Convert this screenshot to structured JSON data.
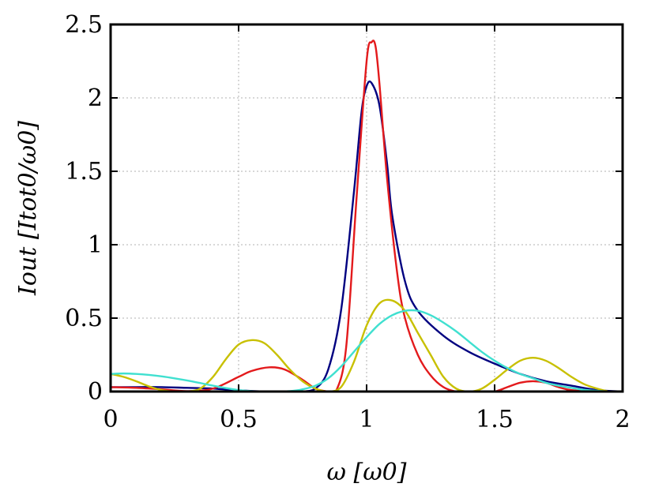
{
  "chart_data": {
    "type": "line",
    "xlabel": "ω [ω0]",
    "ylabel": "Iout [Itot0/ω0]",
    "xlim": [
      0,
      2
    ],
    "ylim": [
      0,
      2.5
    ],
    "x_ticks": [
      "0",
      "0.5",
      "1",
      "1.5",
      "2"
    ],
    "y_ticks": [
      "0",
      "0.5",
      "1",
      "1.5",
      "2",
      "2.5"
    ],
    "grid": true,
    "series": [
      {
        "color": "#000080",
        "x": [
          0,
          0.1,
          0.2,
          0.3,
          0.4,
          0.5,
          0.6,
          0.7,
          0.75,
          0.8,
          0.85,
          0.9,
          0.95,
          0.98,
          1.0,
          1.02,
          1.05,
          1.08,
          1.1,
          1.15,
          1.2,
          1.3,
          1.4,
          1.5,
          1.6,
          1.7,
          1.8,
          1.9,
          2.0
        ],
        "y": [
          0.03,
          0.03,
          0.03,
          0.025,
          0.02,
          0.008,
          0.0,
          0.0,
          0.0,
          0.02,
          0.15,
          0.55,
          1.35,
          1.9,
          2.08,
          2.1,
          1.95,
          1.55,
          1.2,
          0.75,
          0.55,
          0.38,
          0.27,
          0.19,
          0.12,
          0.07,
          0.04,
          0.01,
          0.0
        ]
      },
      {
        "color": "#e31a1c",
        "x": [
          0,
          0.1,
          0.2,
          0.3,
          0.4,
          0.5,
          0.55,
          0.62,
          0.68,
          0.75,
          0.8,
          0.85,
          0.88,
          0.92,
          0.96,
          1.0,
          1.02,
          1.035,
          1.05,
          1.08,
          1.12,
          1.15,
          1.2,
          1.25,
          1.3,
          1.35,
          1.4,
          1.45,
          1.5,
          1.55,
          1.6,
          1.65,
          1.7,
          1.75,
          1.8,
          1.9,
          2.0
        ],
        "y": [
          0.03,
          0.025,
          0.015,
          0.003,
          0.02,
          0.1,
          0.14,
          0.165,
          0.15,
          0.08,
          0.02,
          0.0,
          0.0,
          0.3,
          1.3,
          2.25,
          2.38,
          2.35,
          2.1,
          1.45,
          0.8,
          0.5,
          0.25,
          0.11,
          0.03,
          0.0,
          0.0,
          0.0,
          0.0,
          0.03,
          0.06,
          0.07,
          0.06,
          0.03,
          0.01,
          0.0,
          0.0
        ]
      },
      {
        "color": "#c8c000",
        "x": [
          0,
          0.05,
          0.1,
          0.15,
          0.2,
          0.25,
          0.3,
          0.35,
          0.4,
          0.45,
          0.5,
          0.55,
          0.6,
          0.65,
          0.7,
          0.75,
          0.8,
          0.85,
          0.9,
          0.95,
          1.0,
          1.05,
          1.1,
          1.15,
          1.2,
          1.25,
          1.3,
          1.35,
          1.4,
          1.45,
          1.5,
          1.55,
          1.6,
          1.65,
          1.7,
          1.75,
          1.8,
          1.85,
          1.9,
          1.95,
          2.0
        ],
        "y": [
          0.12,
          0.1,
          0.07,
          0.035,
          0.01,
          0.0,
          0.0,
          0.02,
          0.1,
          0.22,
          0.32,
          0.35,
          0.33,
          0.25,
          0.15,
          0.07,
          0.02,
          0.0,
          0.03,
          0.2,
          0.45,
          0.6,
          0.62,
          0.55,
          0.4,
          0.25,
          0.1,
          0.02,
          0.0,
          0.02,
          0.08,
          0.15,
          0.21,
          0.23,
          0.21,
          0.16,
          0.1,
          0.05,
          0.02,
          0.0,
          0.0
        ]
      },
      {
        "color": "#40e0d0",
        "x": [
          0,
          0.05,
          0.1,
          0.15,
          0.2,
          0.25,
          0.3,
          0.35,
          0.4,
          0.45,
          0.5,
          0.55,
          0.6,
          0.65,
          0.7,
          0.75,
          0.8,
          0.85,
          0.9,
          0.95,
          1.0,
          1.05,
          1.1,
          1.15,
          1.2,
          1.25,
          1.3,
          1.35,
          1.4,
          1.45,
          1.5,
          1.55,
          1.6,
          1.65,
          1.7,
          1.75,
          1.8,
          1.85,
          1.9,
          1.95,
          2.0
        ],
        "y": [
          0.12,
          0.123,
          0.12,
          0.113,
          0.103,
          0.09,
          0.075,
          0.058,
          0.04,
          0.024,
          0.01,
          0.003,
          0.0,
          0.0,
          0.003,
          0.015,
          0.04,
          0.09,
          0.17,
          0.27,
          0.37,
          0.46,
          0.52,
          0.55,
          0.55,
          0.52,
          0.47,
          0.41,
          0.34,
          0.27,
          0.21,
          0.16,
          0.12,
          0.09,
          0.06,
          0.04,
          0.025,
          0.012,
          0.005,
          0.001,
          0.0
        ]
      }
    ]
  }
}
